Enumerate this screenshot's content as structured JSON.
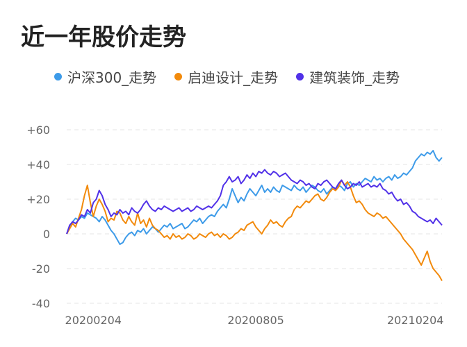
{
  "title": "近一年股价走势",
  "legend": [
    {
      "label": "沪深300_走势",
      "color": "#3d9be9"
    },
    {
      "label": "启迪设计_走势",
      "color": "#f28a0c"
    },
    {
      "label": "建筑装饰_走势",
      "color": "#5131e8"
    }
  ],
  "chart_data": {
    "type": "line",
    "ylim": [
      -40,
      60
    ],
    "yticks": [
      {
        "value": 60,
        "label": "+60"
      },
      {
        "value": 40,
        "label": "+40"
      },
      {
        "value": 20,
        "label": "+20"
      },
      {
        "value": 0,
        "label": "0"
      },
      {
        "value": -20,
        "label": "-20"
      },
      {
        "value": -40,
        "label": "-40"
      }
    ],
    "x_tick_labels": [
      {
        "index": 9,
        "label": "20200204"
      },
      {
        "index": 64,
        "label": "20200805"
      },
      {
        "index": 118,
        "label": "20210204"
      }
    ],
    "x_count": 128,
    "grid": true,
    "legend_position": "top",
    "series": [
      {
        "name": "沪深300_走势",
        "color": "#3d9be9",
        "values": [
          0,
          4,
          7,
          9,
          8,
          10,
          9,
          12,
          11,
          10,
          9,
          7,
          10,
          8,
          5,
          2,
          0,
          -3,
          -6,
          -5,
          -2,
          0,
          1,
          -1,
          2,
          1,
          3,
          0,
          2,
          4,
          3,
          1,
          3,
          5,
          4,
          6,
          3,
          4,
          5,
          6,
          3,
          4,
          6,
          8,
          7,
          9,
          6,
          8,
          10,
          11,
          10,
          13,
          15,
          17,
          15,
          20,
          26,
          22,
          18,
          21,
          19,
          23,
          26,
          24,
          22,
          25,
          28,
          24,
          26,
          24,
          27,
          25,
          24,
          28,
          27,
          26,
          25,
          28,
          26,
          25,
          27,
          24,
          26,
          28,
          27,
          25,
          24,
          26,
          23,
          25,
          27,
          26,
          28,
          27,
          25,
          29,
          30,
          27,
          29,
          28,
          30,
          32,
          31,
          30,
          33,
          31,
          32,
          30,
          32,
          33,
          31,
          34,
          32,
          33,
          35,
          34,
          36,
          38,
          42,
          44,
          46,
          45,
          47,
          46,
          48,
          44,
          42,
          44
        ]
      },
      {
        "name": "启迪设计_走势",
        "color": "#f28a0c",
        "values": [
          0,
          3,
          6,
          4,
          9,
          14,
          22,
          28,
          18,
          10,
          16,
          20,
          17,
          13,
          7,
          9,
          8,
          13,
          12,
          8,
          6,
          10,
          7,
          5,
          12,
          6,
          8,
          4,
          9,
          5,
          3,
          2,
          0,
          -2,
          -1,
          -3,
          0,
          -2,
          -1,
          -3,
          -2,
          0,
          -1,
          -3,
          -2,
          0,
          -1,
          -2,
          0,
          1,
          -1,
          0,
          -2,
          0,
          -1,
          -3,
          -2,
          0,
          1,
          3,
          2,
          5,
          6,
          7,
          4,
          2,
          0,
          3,
          5,
          8,
          6,
          7,
          5,
          4,
          7,
          9,
          10,
          14,
          16,
          15,
          17,
          19,
          18,
          20,
          22,
          23,
          20,
          19,
          21,
          24,
          26,
          25,
          27,
          31,
          28,
          30,
          27,
          22,
          18,
          19,
          17,
          14,
          12,
          11,
          10,
          12,
          11,
          9,
          10,
          8,
          6,
          4,
          2,
          0,
          -3,
          -5,
          -7,
          -9,
          -12,
          -15,
          -18,
          -14,
          -10,
          -16,
          -20,
          -22,
          -24,
          -27
        ]
      },
      {
        "name": "建筑装饰_走势",
        "color": "#5131e8",
        "values": [
          0,
          5,
          7,
          6,
          8,
          11,
          10,
          14,
          12,
          18,
          20,
          25,
          22,
          17,
          14,
          10,
          12,
          11,
          14,
          12,
          13,
          11,
          15,
          13,
          12,
          14,
          17,
          19,
          16,
          14,
          13,
          15,
          14,
          16,
          15,
          14,
          13,
          14,
          15,
          13,
          14,
          15,
          13,
          14,
          16,
          15,
          14,
          15,
          16,
          15,
          17,
          19,
          22,
          28,
          30,
          33,
          30,
          31,
          33,
          29,
          31,
          34,
          32,
          35,
          33,
          36,
          35,
          37,
          35,
          34,
          36,
          35,
          33,
          34,
          35,
          33,
          31,
          30,
          29,
          31,
          30,
          28,
          29,
          27,
          26,
          29,
          28,
          30,
          31,
          29,
          27,
          26,
          29,
          31,
          28,
          26,
          27,
          29,
          28,
          30,
          27,
          28,
          29,
          27,
          28,
          27,
          29,
          26,
          25,
          23,
          24,
          21,
          19,
          20,
          17,
          18,
          16,
          13,
          12,
          10,
          9,
          8,
          7,
          8,
          6,
          9,
          7,
          5
        ]
      }
    ]
  }
}
